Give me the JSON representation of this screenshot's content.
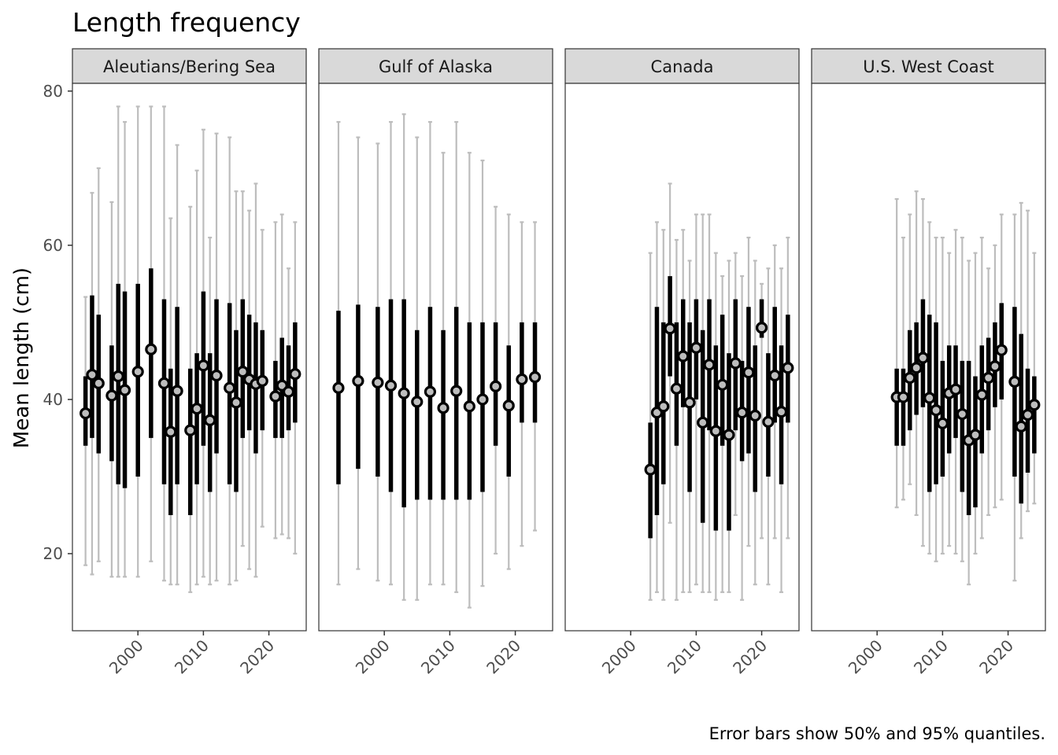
{
  "chart_data": {
    "type": "errorbar",
    "title": "Length frequency",
    "ylabel": "Mean length (cm)",
    "xlabel": "",
    "caption": "Error bars show 50% and 95% quantiles.",
    "xlim": [
      1990,
      2025.7
    ],
    "ylim": [
      10,
      81
    ],
    "x_ticks": [
      2000,
      2010,
      2020
    ],
    "y_ticks": [
      20,
      40,
      60,
      80
    ],
    "grid": false,
    "colors": {
      "q95_bar": "#bdbdbd",
      "q50_bar": "#000000",
      "point_fill": "#bdbdbd",
      "point_stroke": "#000000",
      "strip_fill": "#d9d9d9",
      "panel_border": "#333333"
    },
    "panels": [
      {
        "name": "Aleutians/Bering Sea",
        "points": [
          {
            "year": 1992,
            "mean": 38.2,
            "q50": [
              34,
              43
            ],
            "q95": [
              18.5,
              53.3
            ]
          },
          {
            "year": 1993,
            "mean": 43.2,
            "q50": [
              35,
              53.5
            ],
            "q95": [
              17.3,
              66.8
            ]
          },
          {
            "year": 1994,
            "mean": 42.1,
            "q50": [
              33,
              51
            ],
            "q95": [
              19,
              70
            ]
          },
          {
            "year": 1996,
            "mean": 40.5,
            "q50": [
              32,
              47
            ],
            "q95": [
              17,
              65.6
            ]
          },
          {
            "year": 1997,
            "mean": 43,
            "q50": [
              29,
              55
            ],
            "q95": [
              17,
              78
            ]
          },
          {
            "year": 1998,
            "mean": 41.2,
            "q50": [
              28.5,
              54
            ],
            "q95": [
              17,
              76
            ]
          },
          {
            "year": 2000,
            "mean": 43.6,
            "q50": [
              30,
              55
            ],
            "q95": [
              17,
              78
            ]
          },
          {
            "year": 2002,
            "mean": 46.5,
            "q50": [
              35,
              57
            ],
            "q95": [
              19,
              78
            ]
          },
          {
            "year": 2004,
            "mean": 42.1,
            "q50": [
              29,
              53
            ],
            "q95": [
              16.5,
              78
            ]
          },
          {
            "year": 2005,
            "mean": 35.8,
            "q50": [
              25,
              44
            ],
            "q95": [
              16,
              63.5
            ]
          },
          {
            "year": 2006,
            "mean": 41.1,
            "q50": [
              29,
              52
            ],
            "q95": [
              16,
              73
            ]
          },
          {
            "year": 2008,
            "mean": 36,
            "q50": [
              25,
              44
            ],
            "q95": [
              15,
              65
            ]
          },
          {
            "year": 2009,
            "mean": 38.8,
            "q50": [
              29,
              46
            ],
            "q95": [
              16,
              69.7
            ]
          },
          {
            "year": 2010,
            "mean": 44.4,
            "q50": [
              34,
              54
            ],
            "q95": [
              17,
              75
            ]
          },
          {
            "year": 2011,
            "mean": 37.3,
            "q50": [
              28,
              46
            ],
            "q95": [
              16,
              61
            ]
          },
          {
            "year": 2012,
            "mean": 43.1,
            "q50": [
              33,
              53
            ],
            "q95": [
              16.5,
              74.5
            ]
          },
          {
            "year": 2014,
            "mean": 41.5,
            "q50": [
              29,
              52.5
            ],
            "q95": [
              16,
              74
            ]
          },
          {
            "year": 2015,
            "mean": 39.6,
            "q50": [
              28,
              49
            ],
            "q95": [
              16.5,
              67
            ]
          },
          {
            "year": 2016,
            "mean": 43.6,
            "q50": [
              35,
              53
            ],
            "q95": [
              21,
              67
            ]
          },
          {
            "year": 2017,
            "mean": 42.6,
            "q50": [
              36,
              51
            ],
            "q95": [
              18,
              64.5
            ]
          },
          {
            "year": 2018,
            "mean": 42,
            "q50": [
              33,
              50
            ],
            "q95": [
              17,
              68
            ]
          },
          {
            "year": 2019,
            "mean": 42.4,
            "q50": [
              36,
              49
            ],
            "q95": [
              23.5,
              62
            ]
          },
          {
            "year": 2021,
            "mean": 40.4,
            "q50": [
              35,
              45
            ],
            "q95": [
              22,
              63
            ]
          },
          {
            "year": 2022,
            "mean": 41.8,
            "q50": [
              35,
              48
            ],
            "q95": [
              22.5,
              64
            ]
          },
          {
            "year": 2023,
            "mean": 41,
            "q50": [
              36,
              47
            ],
            "q95": [
              22,
              57
            ]
          },
          {
            "year": 2024,
            "mean": 43.3,
            "q50": [
              37,
              50
            ],
            "q95": [
              20,
              63
            ]
          }
        ]
      },
      {
        "name": "Gulf of Alaska",
        "points": [
          {
            "year": 1993,
            "mean": 41.5,
            "q50": [
              29,
              51.5
            ],
            "q95": [
              16,
              76
            ]
          },
          {
            "year": 1996,
            "mean": 42.4,
            "q50": [
              31,
              52.3
            ],
            "q95": [
              18,
              74
            ]
          },
          {
            "year": 1999,
            "mean": 42.2,
            "q50": [
              30,
              52
            ],
            "q95": [
              16.5,
              73.2
            ]
          },
          {
            "year": 2001,
            "mean": 41.8,
            "q50": [
              28,
              53
            ],
            "q95": [
              16,
              76
            ]
          },
          {
            "year": 2003,
            "mean": 40.8,
            "q50": [
              26,
              53
            ],
            "q95": [
              14,
              77
            ]
          },
          {
            "year": 2005,
            "mean": 39.7,
            "q50": [
              27,
              49
            ],
            "q95": [
              14,
              74
            ]
          },
          {
            "year": 2007,
            "mean": 41,
            "q50": [
              27,
              52
            ],
            "q95": [
              16,
              76
            ]
          },
          {
            "year": 2009,
            "mean": 38.9,
            "q50": [
              27,
              49
            ],
            "q95": [
              16,
              72
            ]
          },
          {
            "year": 2011,
            "mean": 41.1,
            "q50": [
              27,
              52
            ],
            "q95": [
              15,
              76
            ]
          },
          {
            "year": 2013,
            "mean": 39.1,
            "q50": [
              27,
              50
            ],
            "q95": [
              13,
              72
            ]
          },
          {
            "year": 2015,
            "mean": 40,
            "q50": [
              28,
              50
            ],
            "q95": [
              15.8,
              71
            ]
          },
          {
            "year": 2017,
            "mean": 41.7,
            "q50": [
              34,
              50
            ],
            "q95": [
              20,
              65
            ]
          },
          {
            "year": 2019,
            "mean": 39.2,
            "q50": [
              30,
              47
            ],
            "q95": [
              18,
              64
            ]
          },
          {
            "year": 2021,
            "mean": 42.6,
            "q50": [
              37,
              50
            ],
            "q95": [
              21,
              63
            ]
          },
          {
            "year": 2023,
            "mean": 42.9,
            "q50": [
              37,
              50
            ],
            "q95": [
              23,
              63
            ]
          }
        ]
      },
      {
        "name": "Canada",
        "points": [
          {
            "year": 2003,
            "mean": 30.9,
            "q50": [
              22,
              37
            ],
            "q95": [
              14,
              59
            ]
          },
          {
            "year": 2004,
            "mean": 38.3,
            "q50": [
              25,
              52
            ],
            "q95": [
              15,
              63
            ]
          },
          {
            "year": 2005,
            "mean": 39.1,
            "q50": [
              29,
              50
            ],
            "q95": [
              14,
              62
            ]
          },
          {
            "year": 2006,
            "mean": 49.2,
            "q50": [
              43,
              56
            ],
            "q95": [
              24,
              68
            ]
          },
          {
            "year": 2007,
            "mean": 41.4,
            "q50": [
              34,
              50
            ],
            "q95": [
              14,
              60.7
            ]
          },
          {
            "year": 2008,
            "mean": 45.6,
            "q50": [
              39,
              53
            ],
            "q95": [
              15,
              62
            ]
          },
          {
            "year": 2009,
            "mean": 39.6,
            "q50": [
              28,
              50
            ],
            "q95": [
              15,
              58
            ]
          },
          {
            "year": 2010,
            "mean": 46.7,
            "q50": [
              40,
              53
            ],
            "q95": [
              16,
              64
            ]
          },
          {
            "year": 2011,
            "mean": 37,
            "q50": [
              24,
              49
            ],
            "q95": [
              15,
              64
            ]
          },
          {
            "year": 2012,
            "mean": 44.5,
            "q50": [
              36,
              53
            ],
            "q95": [
              15,
              64
            ]
          },
          {
            "year": 2013,
            "mean": 35.9,
            "q50": [
              23,
              47
            ],
            "q95": [
              14,
              59
            ]
          },
          {
            "year": 2014,
            "mean": 41.9,
            "q50": [
              34,
              51
            ],
            "q95": [
              15,
              56
            ]
          },
          {
            "year": 2015,
            "mean": 35.4,
            "q50": [
              23,
              46
            ],
            "q95": [
              15,
              58
            ]
          },
          {
            "year": 2016,
            "mean": 44.7,
            "q50": [
              36,
              53
            ],
            "q95": [
              25,
              59
            ]
          },
          {
            "year": 2017,
            "mean": 38.3,
            "q50": [
              32,
              45
            ],
            "q95": [
              14,
              56
            ]
          },
          {
            "year": 2018,
            "mean": 43.5,
            "q50": [
              33,
              52
            ],
            "q95": [
              21,
              61
            ]
          },
          {
            "year": 2019,
            "mean": 37.9,
            "q50": [
              28,
              47
            ],
            "q95": [
              16,
              58
            ]
          },
          {
            "year": 2020,
            "mean": 49.3,
            "q50": [
              48,
              53
            ],
            "q95": [
              22,
              55
            ]
          },
          {
            "year": 2021,
            "mean": 37.1,
            "q50": [
              30,
              46
            ],
            "q95": [
              16,
              57
            ]
          },
          {
            "year": 2022,
            "mean": 43.1,
            "q50": [
              37,
              52
            ],
            "q95": [
              22,
              60
            ]
          },
          {
            "year": 2023,
            "mean": 38.4,
            "q50": [
              29,
              47
            ],
            "q95": [
              15,
              57
            ]
          },
          {
            "year": 2024,
            "mean": 44.1,
            "q50": [
              37,
              51
            ],
            "q95": [
              22,
              61
            ]
          }
        ]
      },
      {
        "name": "U.S. West Coast",
        "points": [
          {
            "year": 2003,
            "mean": 40.3,
            "q50": [
              34,
              44
            ],
            "q95": [
              26,
              66
            ]
          },
          {
            "year": 2004,
            "mean": 40.3,
            "q50": [
              34,
              44
            ],
            "q95": [
              27,
              61
            ]
          },
          {
            "year": 2005,
            "mean": 42.8,
            "q50": [
              36,
              49
            ],
            "q95": [
              29,
              64
            ]
          },
          {
            "year": 2006,
            "mean": 44.1,
            "q50": [
              38,
              50
            ],
            "q95": [
              25,
              67
            ]
          },
          {
            "year": 2007,
            "mean": 45.4,
            "q50": [
              39,
              53
            ],
            "q95": [
              21,
              66
            ]
          },
          {
            "year": 2008,
            "mean": 40.2,
            "q50": [
              28,
              51
            ],
            "q95": [
              20,
              63
            ]
          },
          {
            "year": 2009,
            "mean": 38.6,
            "q50": [
              29,
              50
            ],
            "q95": [
              19,
              61
            ]
          },
          {
            "year": 2010,
            "mean": 36.9,
            "q50": [
              30,
              45
            ],
            "q95": [
              20,
              61
            ]
          },
          {
            "year": 2011,
            "mean": 40.8,
            "q50": [
              33,
              47
            ],
            "q95": [
              21,
              59
            ]
          },
          {
            "year": 2012,
            "mean": 41.3,
            "q50": [
              35,
              47
            ],
            "q95": [
              20,
              62
            ]
          },
          {
            "year": 2013,
            "mean": 38.1,
            "q50": [
              28,
              45
            ],
            "q95": [
              19,
              61
            ]
          },
          {
            "year": 2014,
            "mean": 34.7,
            "q50": [
              25,
              45
            ],
            "q95": [
              16,
              58
            ]
          },
          {
            "year": 2015,
            "mean": 35.4,
            "q50": [
              26,
              43
            ],
            "q95": [
              20,
              59
            ]
          },
          {
            "year": 2016,
            "mean": 40.6,
            "q50": [
              33,
              47
            ],
            "q95": [
              22,
              61
            ]
          },
          {
            "year": 2017,
            "mean": 42.8,
            "q50": [
              36,
              48
            ],
            "q95": [
              25,
              57
            ]
          },
          {
            "year": 2018,
            "mean": 44.3,
            "q50": [
              39,
              50
            ],
            "q95": [
              26,
              60
            ]
          },
          {
            "year": 2019,
            "mean": 46.4,
            "q50": [
              40,
              52.5
            ],
            "q95": [
              27,
              64
            ]
          },
          {
            "year": 2021,
            "mean": 42.3,
            "q50": [
              30,
              52
            ],
            "q95": [
              16.5,
              64
            ]
          },
          {
            "year": 2022,
            "mean": 36.5,
            "q50": [
              26.5,
              48.5
            ],
            "q95": [
              22,
              65.5
            ]
          },
          {
            "year": 2023,
            "mean": 38,
            "q50": [
              30.5,
              44
            ],
            "q95": [
              25.5,
              64.5
            ]
          },
          {
            "year": 2024,
            "mean": 39.3,
            "q50": [
              33,
              43
            ],
            "q95": [
              26.5,
              59
            ]
          }
        ]
      }
    ]
  }
}
